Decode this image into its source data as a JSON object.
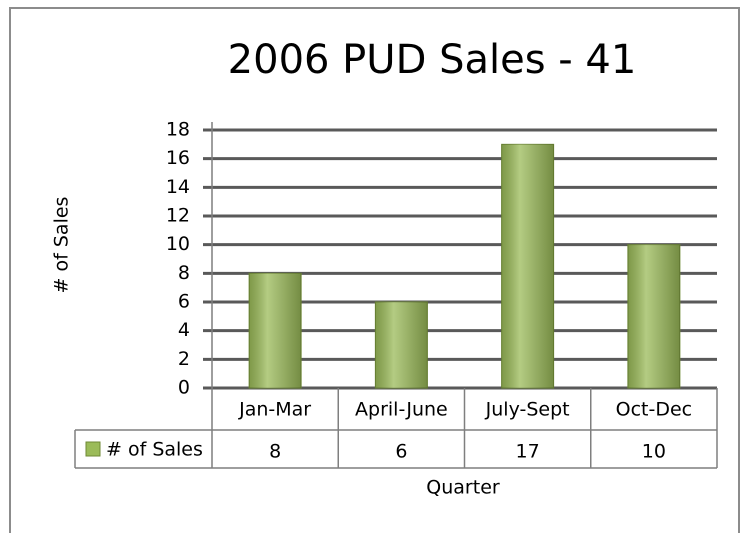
{
  "chart_data": {
    "type": "bar",
    "title": "2006 PUD Sales - 41",
    "y_label": "# of Sales",
    "x_label": "Quarter",
    "categories": [
      "Jan-Mar",
      "April-June",
      "July-Sept",
      "Oct-Dec"
    ],
    "series": [
      {
        "name": "# of Sales",
        "color": "#9bbb59",
        "values": [
          8,
          6,
          17,
          10
        ]
      }
    ],
    "ylim": [
      0,
      18
    ],
    "yticks": [
      0,
      2,
      4,
      6,
      8,
      10,
      12,
      14,
      16,
      18
    ],
    "grid": true
  }
}
